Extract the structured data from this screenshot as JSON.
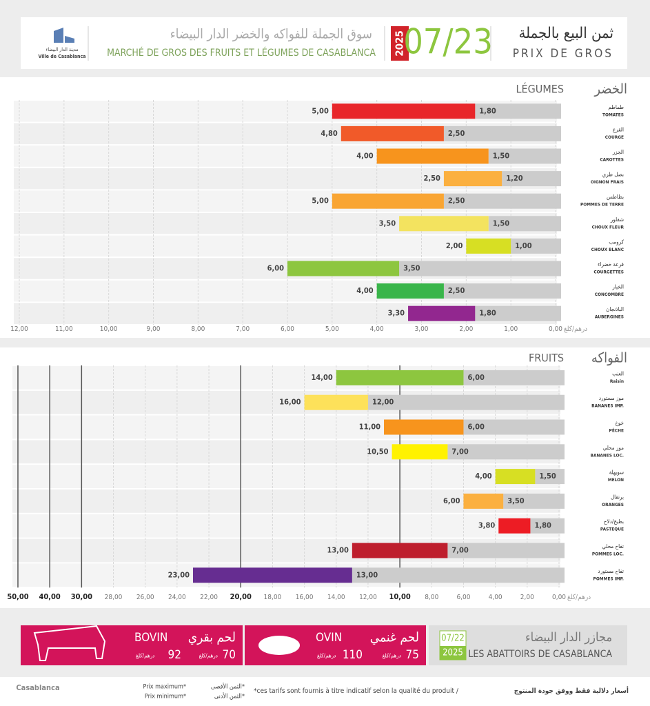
{
  "header": {
    "title_ar": "ثمن البيع بالجملة",
    "title_fr": "PRIX DE GROS",
    "date": "07/23",
    "year": "2025",
    "market_ar": "سوق الجملة للفواكه والخضر الدار البيضاء",
    "market_fr": "MARCHÉ DE GROS DES FRUITS ET LÉGUMES DE CASABLANCA",
    "city_ar": "مدينة الدار البيضاء",
    "city_fr": "Ville de Casablanca"
  },
  "chart_data": [
    {
      "type": "bar",
      "orientation": "horizontal",
      "x_reversed": true,
      "title_ar": "الخضر",
      "title": "LÉGUMES",
      "unit": "درهم/كلغ",
      "categories": [
        "TOMATES",
        "COURGE",
        "CAROTTES",
        "OIGNON FRAIS",
        "POMMES DE TERRE",
        "CHOUX FLEUR",
        "CHOUX BLANC",
        "COURGETTES",
        "CONCOMBRE",
        "AUBERGINES"
      ],
      "categories_ar": [
        "طماطم",
        "القرع",
        "الجزر",
        "بصل طري",
        "بطاطس",
        "شفلور",
        "كرومب",
        "قرعة خضراء",
        "الخيار",
        "الباذنجان"
      ],
      "series": [
        {
          "name": "Prix maximum*",
          "colors": [
            "#e8262a",
            "#f15a29",
            "#f7941d",
            "#fbb040",
            "#f9a533",
            "#f3e35f",
            "#d7df23",
            "#8dc63f",
            "#39b54a",
            "#92278f"
          ],
          "values": [
            5,
            4.8,
            4,
            2.5,
            5,
            3.5,
            2,
            6,
            4,
            3.3
          ],
          "value_labels": [
            "5,00",
            "4,80",
            "4,00",
            "2,50",
            "5,00",
            "3,50",
            "2,00",
            "6,00",
            "4,00",
            "3,30"
          ]
        },
        {
          "color": "#cccccc",
          "values": [
            1.8,
            2.5,
            1.5,
            1.2,
            2.5,
            1.5,
            1,
            3.5,
            2.5,
            1.8
          ],
          "value_labels": [
            "1,80",
            "2,50",
            "1,50",
            "1,20",
            "2,50",
            "1,50",
            "1,00",
            "3,50",
            "2,50",
            "1,80"
          ]
        }
      ],
      "xlim": [
        0,
        12
      ],
      "xticks": [
        {
          "value": 0,
          "label": "0,00"
        },
        {
          "value": 1,
          "label": "1,00"
        },
        {
          "value": 2,
          "label": "2,00"
        },
        {
          "value": 3,
          "label": "3,00"
        },
        {
          "value": 4,
          "label": "4,00"
        },
        {
          "value": 5,
          "label": "5,00"
        },
        {
          "value": 6,
          "label": "6,00"
        },
        {
          "value": 7,
          "label": "7,00"
        },
        {
          "value": 8,
          "label": "8,00"
        },
        {
          "value": 9,
          "label": "9,00"
        },
        {
          "value": 10,
          "label": "10,00"
        },
        {
          "value": 11,
          "label": "11,00"
        },
        {
          "value": 12,
          "label": "12,00"
        }
      ],
      "grid": true
    },
    {
      "type": "bar",
      "orientation": "horizontal",
      "x_reversed": true,
      "title_ar": "الفواكه",
      "title": "FRUITS",
      "unit": "درهم/كلغ",
      "major_tick_step": 10,
      "categories": [
        "Raisin",
        "BANANES IMP.",
        "PÊCHE",
        "BANANES LOC.",
        "MELON",
        "ORANGES",
        "PASTEQUE",
        "POMMES LOC.",
        "POMMES IMP."
      ],
      "categories_ar": [
        "العنب",
        "موز مستورد",
        "خوخ",
        "موز محلي",
        "سويهلة",
        "برتقال",
        "بطيخ/دلاح",
        "تفاح محلي",
        "تفاح مستورد"
      ],
      "series": [
        {
          "colors": [
            "#8dc63f",
            "#fde15a",
            "#f7941d",
            "#fff200",
            "#d7df23",
            "#fbb040",
            "#ed1c24",
            "#be1e2d",
            "#662d91"
          ],
          "values": [
            14,
            16,
            11,
            10.5,
            4,
            6,
            3.8,
            13,
            23
          ],
          "value_labels": [
            "14,00",
            "16,00",
            "11,00",
            "10,50",
            "4,00",
            "6,00",
            "3,80",
            "13,00",
            "23,00"
          ]
        },
        {
          "color": "#cccccc",
          "values": [
            6,
            12,
            6,
            7,
            1.5,
            3.5,
            1.8,
            7,
            13
          ],
          "value_labels": [
            "6,00",
            "12,00",
            "6,00",
            "7,00",
            "1,50",
            "3,50",
            "1,80",
            "7,00",
            "13,00"
          ]
        }
      ],
      "xlim": [
        0,
        50
      ],
      "xticks": [
        {
          "value": 0,
          "label": "0,00"
        },
        {
          "value": 2,
          "label": "2,00"
        },
        {
          "value": 4,
          "label": "4,00"
        },
        {
          "value": 6,
          "label": "6,00"
        },
        {
          "value": 8,
          "label": "8,00"
        },
        {
          "value": 10,
          "label": "10,00"
        },
        {
          "value": 12,
          "label": "12,00"
        },
        {
          "value": 14,
          "label": "14,00"
        },
        {
          "value": 16,
          "label": "16,00"
        },
        {
          "value": 18,
          "label": "18,00"
        },
        {
          "value": 20,
          "label": "20,00"
        },
        {
          "value": 22,
          "label": "22,00"
        },
        {
          "value": 24,
          "label": "24,00"
        },
        {
          "value": 26,
          "label": "26,00"
        },
        {
          "value": 28,
          "label": "28,00"
        },
        {
          "value": 30,
          "label": "30,00"
        },
        {
          "value": 40,
          "label": "40,00"
        },
        {
          "value": 50,
          "label": "50,00"
        }
      ],
      "grid": true
    }
  ],
  "meat": {
    "items": [
      {
        "name_fr": "BOVIN",
        "name_ar": "لحم بقري",
        "max": 92,
        "min": 70,
        "unit": "درهم/كلغ"
      },
      {
        "name_fr": "OVIN",
        "name_ar": "لحم غنمي",
        "max": 110,
        "min": 75,
        "unit": "درهم/كلغ"
      }
    ],
    "date": "07/22",
    "year": "2025",
    "title_ar": "مجازر الدار البيضاء",
    "title_fr": "LES ABATTOIRS DE CASABLANCA"
  },
  "footer": {
    "min_fr": "Prix minimum*",
    "max_ar": "الثمن الأقصى*",
    "min_ar": "الثمن الأدنى*",
    "note_fr": "*ces tarifs sont fournis à titre indicatif selon la qualité du produit  /",
    "note_ar": "أسعار دلالية فقط ووفق جودة المنتوج",
    "logo": "Casablanca"
  }
}
